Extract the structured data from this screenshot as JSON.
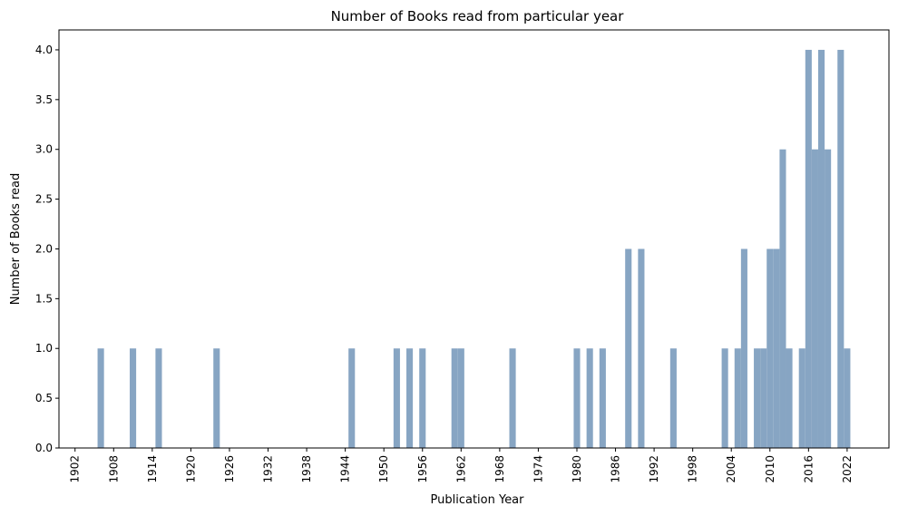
{
  "chart_data": {
    "type": "bar",
    "title": "Number of Books read from particular year",
    "xlabel": "Publication Year",
    "ylabel": "Number of Books read",
    "xlim": [
      1899.5,
      2028.5
    ],
    "ylim": [
      0,
      4.2
    ],
    "x_ticks": [
      "1902",
      "1908",
      "1914",
      "1920",
      "1926",
      "1932",
      "1938",
      "1944",
      "1950",
      "1956",
      "1962",
      "1968",
      "1974",
      "1980",
      "1986",
      "1992",
      "1998",
      "2004",
      "2010",
      "2016",
      "2022"
    ],
    "y_ticks": [
      "0.0",
      "0.5",
      "1.0",
      "1.5",
      "2.0",
      "2.5",
      "3.0",
      "3.5",
      "4.0"
    ],
    "bar_color": "#87a5c3",
    "x": [
      1906,
      1911,
      1915,
      1924,
      1945,
      1952,
      1954,
      1956,
      1961,
      1962,
      1970,
      1980,
      1982,
      1984,
      1988,
      1990,
      1995,
      2003,
      2005,
      2006,
      2008,
      2009,
      2010,
      2011,
      2012,
      2013,
      2015,
      2016,
      2017,
      2018,
      2019,
      2021,
      2022
    ],
    "values": [
      1,
      1,
      1,
      1,
      1,
      1,
      1,
      1,
      1,
      1,
      1,
      1,
      1,
      1,
      2,
      2,
      1,
      1,
      1,
      2,
      1,
      1,
      2,
      2,
      3,
      1,
      1,
      4,
      3,
      4,
      3,
      4,
      1
    ],
    "grid": false,
    "legend": "none"
  }
}
